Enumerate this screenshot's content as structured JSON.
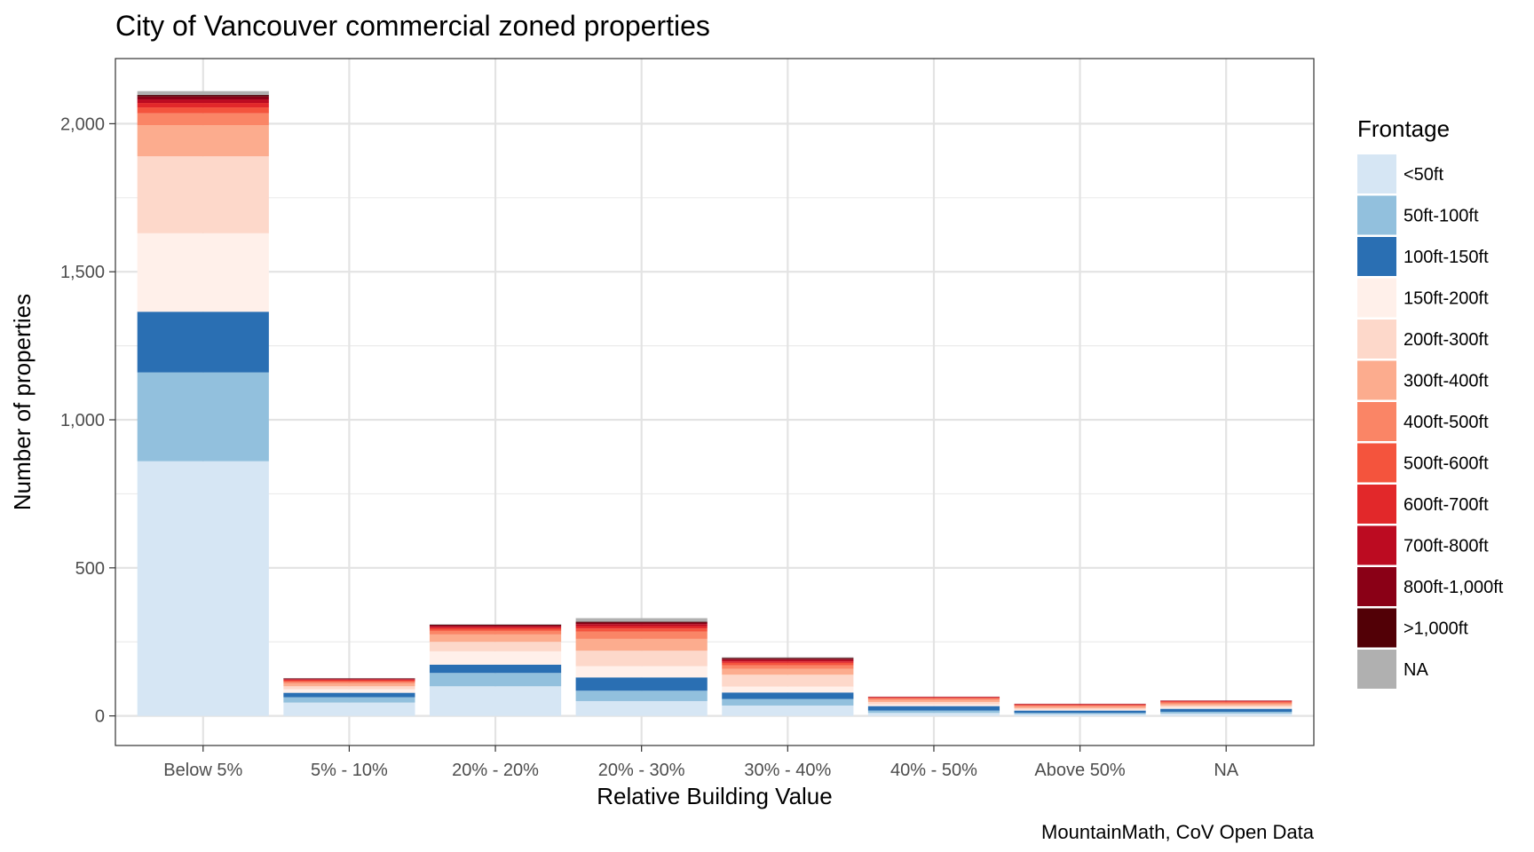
{
  "chart_data": {
    "type": "bar",
    "stacked": true,
    "title": "City of Vancouver commercial zoned properties",
    "xlabel": "Relative Building Value",
    "ylabel": "Number of properties",
    "caption": "MountainMath, CoV Open Data",
    "ylim": [
      -100,
      2220
    ],
    "yticks": [
      0,
      500,
      1000,
      1500,
      2000
    ],
    "ytick_labels": [
      "0",
      "500",
      "1,000",
      "1,500",
      "2,000"
    ],
    "grid": true,
    "legend_position": "right",
    "legend_title": "Frontage",
    "categories": [
      "Below 5%",
      "5% - 10%",
      "20% - 20%",
      "20% - 30%",
      "30% - 40%",
      "40% - 50%",
      "Above 50%",
      "NA"
    ],
    "series": [
      {
        "name": "<50ft",
        "color": "#d6e6f4",
        "values": [
          860,
          45,
          100,
          50,
          35,
          10,
          6,
          8
        ]
      },
      {
        "name": "50ft-100ft",
        "color": "#92c0dd",
        "values": [
          300,
          18,
          45,
          35,
          22,
          8,
          4,
          6
        ]
      },
      {
        "name": "100ft-150ft",
        "color": "#2a6fb3",
        "values": [
          205,
          15,
          28,
          45,
          22,
          15,
          8,
          10
        ]
      },
      {
        "name": "150ft-200ft",
        "color": "#fff0ea",
        "values": [
          265,
          12,
          45,
          38,
          20,
          6,
          3,
          5
        ]
      },
      {
        "name": "200ft-300ft",
        "color": "#fdd8ca",
        "values": [
          260,
          10,
          32,
          52,
          40,
          8,
          5,
          6
        ]
      },
      {
        "name": "300ft-400ft",
        "color": "#fcac8e",
        "values": [
          105,
          10,
          25,
          40,
          20,
          7,
          5,
          6
        ]
      },
      {
        "name": "400ft-500ft",
        "color": "#fa8566",
        "values": [
          40,
          5,
          12,
          25,
          12,
          4,
          3,
          4
        ]
      },
      {
        "name": "500ft-600ft",
        "color": "#f4543d",
        "values": [
          20,
          4,
          7,
          10,
          8,
          3,
          3,
          3
        ]
      },
      {
        "name": "600ft-700ft",
        "color": "#e2282a",
        "values": [
          15,
          3,
          5,
          8,
          5,
          2,
          2,
          2
        ]
      },
      {
        "name": "700ft-800ft",
        "color": "#bc0b21",
        "values": [
          12,
          2,
          4,
          7,
          5,
          1,
          1,
          1
        ]
      },
      {
        "name": "800ft-1,000ft",
        "color": "#8a0016",
        "values": [
          10,
          2,
          3,
          5,
          4,
          1,
          1,
          1
        ]
      },
      {
        "name": ">1,000ft",
        "color": "#520006",
        "values": [
          5,
          1,
          2,
          3,
          3,
          0,
          0,
          0
        ]
      },
      {
        "name": "NA",
        "color": "#b0b0b0",
        "values": [
          13,
          1,
          2,
          12,
          2,
          0,
          0,
          0
        ]
      }
    ]
  }
}
